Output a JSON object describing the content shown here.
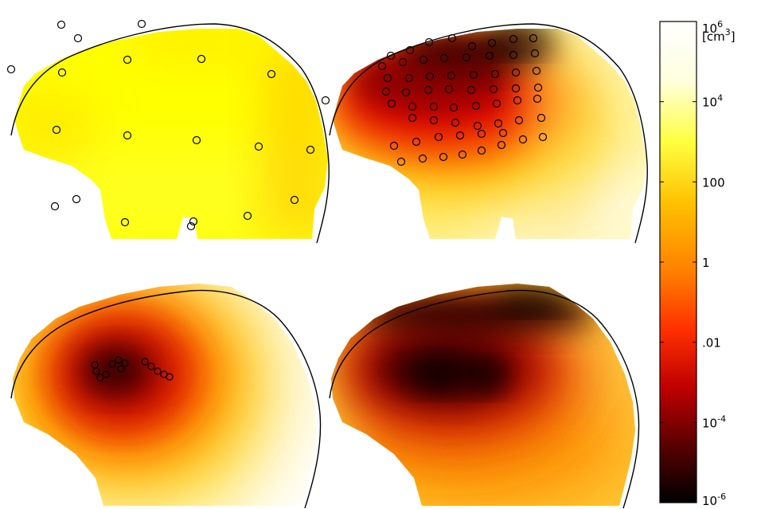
{
  "colors": {
    "colormap_stops": [
      "#000000",
      "#5a0000",
      "#c00000",
      "#ff3000",
      "#ff8000",
      "#ffc000",
      "#ffff40",
      "#ffffe0",
      "#ffffff"
    ],
    "outline": "#000000",
    "background": "#ffffff"
  },
  "colorbar": {
    "scale": "log",
    "range": [
      "1e-6",
      "1e6"
    ],
    "unit_base": "[cm",
    "unit_exp": "3",
    "unit_close": "]",
    "ticks": [
      {
        "base": "10",
        "exp": "6",
        "value_log": 6
      },
      {
        "base": "10",
        "exp": "4",
        "value_log": 4
      },
      {
        "base": "100",
        "exp": "",
        "value_log": 2
      },
      {
        "base": "1",
        "exp": "",
        "value_log": 0
      },
      {
        "base": ".01",
        "exp": "",
        "value_log": -2
      },
      {
        "base": "10",
        "exp": "-4",
        "value_log": -4
      },
      {
        "base": "10",
        "exp": "-6",
        "value_log": -6
      }
    ]
  },
  "panels": [
    {
      "id": "top-left",
      "sensor_pattern": "sparse-around-head"
    },
    {
      "id": "top-right",
      "sensor_pattern": "grid-upper-front"
    },
    {
      "id": "bottom-left",
      "sensor_pattern": "cluster-center"
    },
    {
      "id": "bottom-right",
      "sensor_pattern": "none"
    }
  ]
}
